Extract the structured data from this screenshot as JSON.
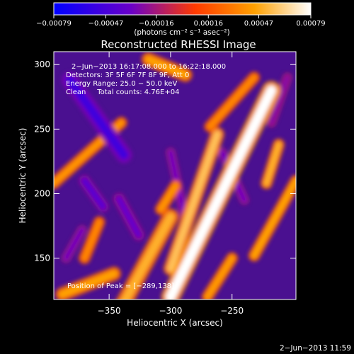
{
  "chart_data": {
    "type": "heatmap",
    "title": "Reconstructed RHESSI Image",
    "xlabel": "Heliocentric X (arcsec)",
    "ylabel": "Heliocentric Y (arcsec)",
    "xlim": [
      -395,
      -198
    ],
    "ylim": [
      118,
      310
    ],
    "x_ticks": [
      -350,
      -300,
      -250
    ],
    "x_tick_labels": [
      "−350",
      "−300",
      "−250"
    ],
    "y_ticks": [
      150,
      200,
      250,
      300
    ],
    "y_tick_labels": [
      "150",
      "200",
      "250",
      "300"
    ],
    "colorbar": {
      "range": [
        -0.00079,
        0.00079
      ],
      "ticks": [
        -0.00079,
        -0.00047,
        -0.00016,
        0.00016,
        0.00047,
        0.00079
      ],
      "tick_labels": [
        "−0.00079",
        "−0.00047",
        "−0.00016",
        "0.00016",
        "0.00047",
        "0.00079"
      ],
      "unit_label": "(photons cm⁻² s⁻¹ asec⁻²)",
      "colors": [
        "#0000ff",
        "#6a00c8",
        "#ff3a00",
        "#ffa000",
        "#ffffff"
      ]
    },
    "annotations": [
      "2−Jun−2013 16:17:08.000 to 16:22:18.000",
      "Detectors: 3F 5F 6F 7F 8F 9F, Att 0",
      "Energy Range: 25.0 − 50.0 keV",
      "Clean     Total counts: 4.76E+04"
    ],
    "peak_label": "Position of Peak = [−289,138]",
    "features": [
      {
        "x0": -300,
        "y0": 120,
        "x1": -218,
        "y1": 280,
        "w": 8,
        "v": 0.00079
      },
      {
        "x0": -300,
        "y0": 142,
        "x1": -262,
        "y1": 246,
        "w": 6,
        "v": 0.00056
      },
      {
        "x0": -288,
        "y0": 292,
        "x1": -318,
        "y1": 304,
        "w": 6,
        "v": 0.00045
      },
      {
        "x0": -340,
        "y0": 112,
        "x1": -300,
        "y1": 182,
        "w": 7,
        "v": 0.0005
      },
      {
        "x0": -388,
        "y0": 122,
        "x1": -346,
        "y1": 138,
        "w": 6,
        "v": 0.00045
      },
      {
        "x0": -395,
        "y0": 208,
        "x1": -340,
        "y1": 255,
        "w": 5,
        "v": 0.0004
      },
      {
        "x0": -270,
        "y0": 120,
        "x1": -250,
        "y1": 150,
        "w": 5,
        "v": 0.00042
      },
      {
        "x0": -232,
        "y0": 152,
        "x1": -198,
        "y1": 210,
        "w": 5,
        "v": 0.00045
      },
      {
        "x0": -222,
        "y0": 208,
        "x1": -212,
        "y1": 238,
        "w": 5,
        "v": 0.0005
      },
      {
        "x0": -268,
        "y0": 252,
        "x1": -232,
        "y1": 290,
        "w": 5,
        "v": 0.00035
      },
      {
        "x0": -308,
        "y0": 188,
        "x1": -296,
        "y1": 206,
        "w": 5,
        "v": 0.0004
      },
      {
        "x0": -370,
        "y0": 150,
        "x1": -358,
        "y1": 178,
        "w": 5,
        "v": 0.00035
      },
      {
        "x0": -382,
        "y0": 288,
        "x1": -338,
        "y1": 230,
        "w": 7,
        "v": -0.0005
      },
      {
        "x0": -370,
        "y0": 210,
        "x1": -355,
        "y1": 190,
        "w": 5,
        "v": -0.0004
      },
      {
        "x0": -342,
        "y0": 196,
        "x1": -326,
        "y1": 168,
        "w": 5,
        "v": -0.00035
      },
      {
        "x0": -372,
        "y0": 172,
        "x1": -385,
        "y1": 150,
        "w": 4,
        "v": -0.0003
      },
      {
        "x0": -300,
        "y0": 232,
        "x1": -288,
        "y1": 180,
        "w": 4,
        "v": -0.0003
      },
      {
        "x0": -258,
        "y0": 232,
        "x1": -240,
        "y1": 195,
        "w": 4,
        "v": -0.0003
      },
      {
        "x0": -218,
        "y0": 255,
        "x1": -205,
        "y1": 290,
        "w": 4,
        "v": -0.00025
      }
    ]
  },
  "footer": {
    "timestamp": "2−Jun−2013 11:59"
  }
}
